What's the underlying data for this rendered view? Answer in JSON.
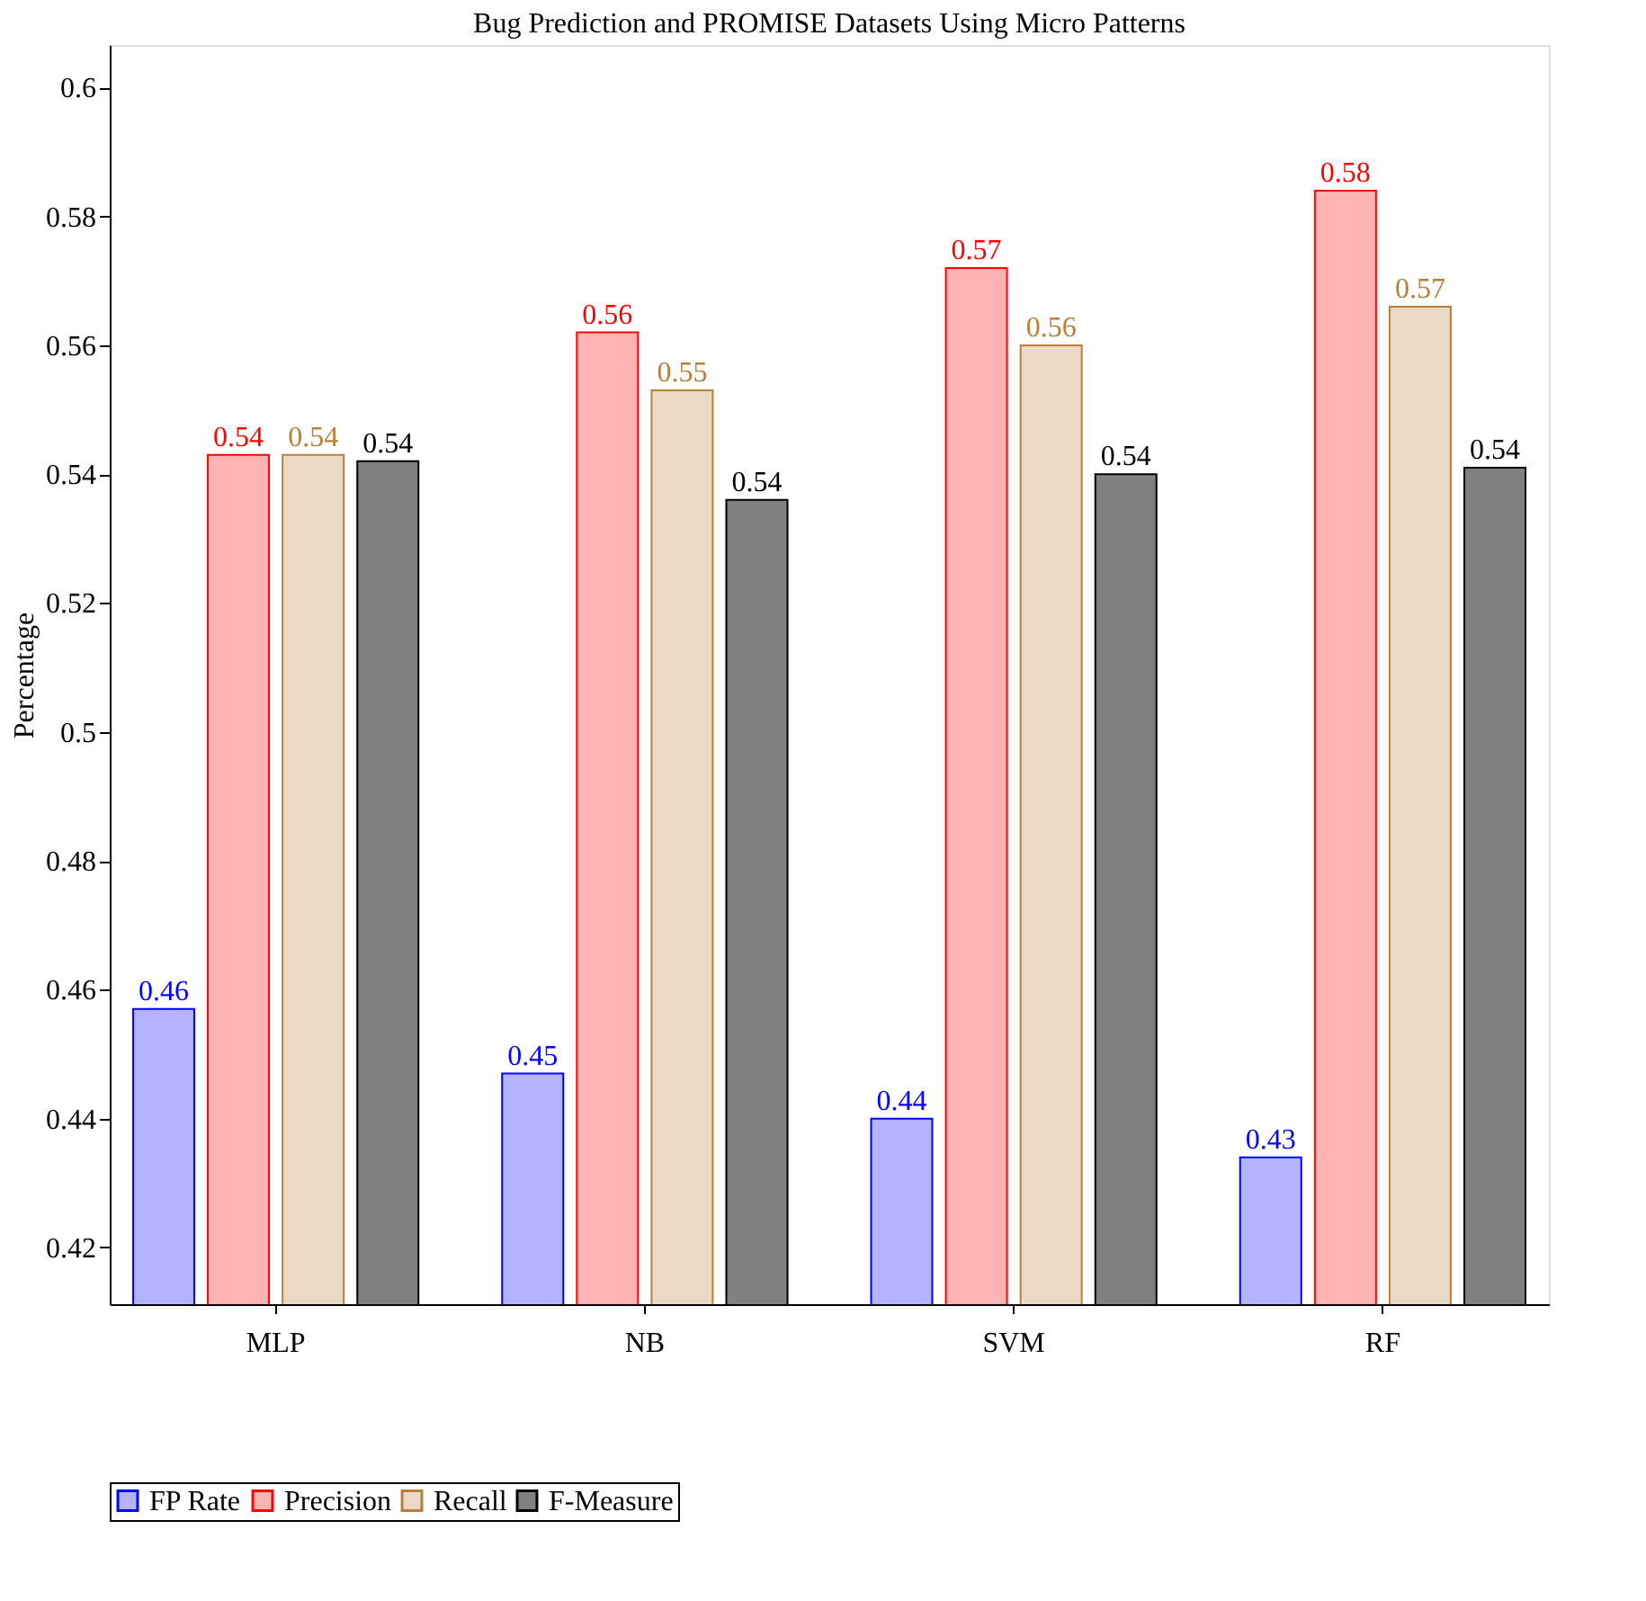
{
  "chart_data": {
    "type": "bar",
    "title": "Bug Prediction and PROMISE Datasets Using Micro Patterns",
    "ylabel": "Percentage",
    "categories": [
      "MLP",
      "NB",
      "SVM",
      "RF"
    ],
    "series": [
      {
        "name": "FP Rate",
        "color": "#b3b3ff",
        "values": [
          0.457,
          0.447,
          0.44,
          0.434
        ],
        "value_labels": [
          "0.46",
          "0.45",
          "0.44",
          "0.43"
        ]
      },
      {
        "name": "Precision",
        "color": "#ffb3b3",
        "values": [
          0.543,
          0.562,
          0.572,
          0.584
        ],
        "value_labels": [
          "0.54",
          "0.56",
          "0.57",
          "0.58"
        ]
      },
      {
        "name": "Recall",
        "color": "#ead9c4",
        "values": [
          0.543,
          0.553,
          0.56,
          0.566
        ],
        "value_labels": [
          "0.54",
          "0.55",
          "0.56",
          "0.57"
        ]
      },
      {
        "name": "F-Measure",
        "color": "#808080",
        "values": [
          0.542,
          0.536,
          0.54,
          0.541
        ],
        "value_labels": [
          "0.54",
          "0.54",
          "0.54",
          "0.54"
        ]
      }
    ],
    "ylim": [
      0.4112,
      0.6066
    ],
    "yticks": [
      0.42,
      0.44,
      0.46,
      0.48,
      0.5,
      0.52,
      0.54,
      0.56,
      0.58,
      0.6
    ],
    "grid": false,
    "legend": "bottom"
  }
}
